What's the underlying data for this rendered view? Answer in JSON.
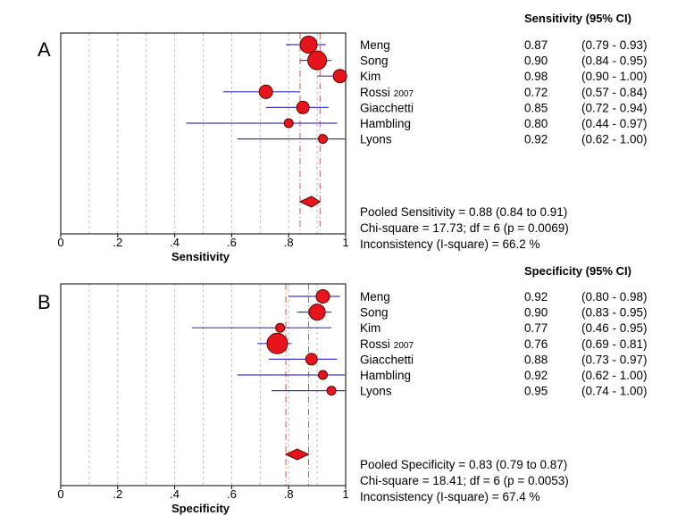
{
  "chart_data": [
    {
      "type": "forest",
      "panel_label": "A",
      "column_header": "Sensitivity (95% CI)",
      "xlabel": "Sensitivity",
      "xlim": [
        0,
        1
      ],
      "x_ticks": [
        "0",
        ".2",
        ".4",
        ".6",
        ".8",
        "1"
      ],
      "studies": [
        {
          "name": "Meng",
          "suffix": "",
          "estimate": 0.87,
          "ci_low": 0.79,
          "ci_high": 0.93,
          "estimate_text": "0.87",
          "ci_text": "(0.79 - 0.93)",
          "weight": 9.5
        },
        {
          "name": "Song",
          "suffix": "",
          "estimate": 0.9,
          "ci_low": 0.84,
          "ci_high": 0.95,
          "estimate_text": "0.90",
          "ci_text": "(0.84 - 0.95)",
          "weight": 10.5
        },
        {
          "name": "Kim",
          "suffix": "",
          "estimate": 0.98,
          "ci_low": 0.9,
          "ci_high": 1.0,
          "estimate_text": "0.98",
          "ci_text": "(0.90 - 1.00)",
          "weight": 7.5
        },
        {
          "name": "Rossi",
          "suffix": "2007",
          "estimate": 0.72,
          "ci_low": 0.57,
          "ci_high": 0.84,
          "estimate_text": "0.72",
          "ci_text": "(0.57 - 0.84)",
          "weight": 7.5
        },
        {
          "name": "Giacchetti",
          "suffix": "",
          "estimate": 0.85,
          "ci_low": 0.72,
          "ci_high": 0.94,
          "estimate_text": "0.85",
          "ci_text": "(0.72 - 0.94)",
          "weight": 7.0
        },
        {
          "name": "Hambling",
          "suffix": "",
          "estimate": 0.8,
          "ci_low": 0.44,
          "ci_high": 0.97,
          "estimate_text": "0.80",
          "ci_text": "(0.44 - 0.97)",
          "weight": 5.0
        },
        {
          "name": "Lyons",
          "suffix": "",
          "estimate": 0.92,
          "ci_low": 0.62,
          "ci_high": 1.0,
          "estimate_text": "0.92",
          "ci_text": "(0.62 - 1.00)",
          "weight": 5.0
        }
      ],
      "pooled": {
        "estimate": 0.88,
        "ci_low": 0.84,
        "ci_high": 0.91
      },
      "summary_lines": [
        "Pooled Sensitivity = 0.88 (0.84 to 0.91)",
        "Chi-square = 17.73; df =  6 (p = 0.0069)",
        "Inconsistency (I-square) = 66.2 %"
      ]
    },
    {
      "type": "forest",
      "panel_label": "B",
      "column_header": "Specificity (95% CI)",
      "xlabel": "Specificity",
      "xlim": [
        0,
        1
      ],
      "x_ticks": [
        "0",
        ".2",
        ".4",
        ".6",
        ".8",
        "1"
      ],
      "studies": [
        {
          "name": "Meng",
          "suffix": "",
          "estimate": 0.92,
          "ci_low": 0.8,
          "ci_high": 0.98,
          "estimate_text": "0.92",
          "ci_text": "(0.80 - 0.98)",
          "weight": 7.5
        },
        {
          "name": "Song",
          "suffix": "",
          "estimate": 0.9,
          "ci_low": 0.83,
          "ci_high": 0.95,
          "estimate_text": "0.90",
          "ci_text": "(0.83 - 0.95)",
          "weight": 9.0
        },
        {
          "name": "Kim",
          "suffix": "",
          "estimate": 0.77,
          "ci_low": 0.46,
          "ci_high": 0.95,
          "estimate_text": "0.77",
          "ci_text": "(0.46 - 0.95)",
          "weight": 5.0
        },
        {
          "name": "Rossi",
          "suffix": "2007",
          "estimate": 0.76,
          "ci_low": 0.69,
          "ci_high": 0.81,
          "estimate_text": "0.76",
          "ci_text": "(0.69 - 0.81)",
          "weight": 11.5
        },
        {
          "name": "Giacchetti",
          "suffix": "",
          "estimate": 0.88,
          "ci_low": 0.73,
          "ci_high": 0.97,
          "estimate_text": "0.88",
          "ci_text": "(0.73 - 0.97)",
          "weight": 6.5
        },
        {
          "name": "Hambling",
          "suffix": "",
          "estimate": 0.92,
          "ci_low": 0.62,
          "ci_high": 1.0,
          "estimate_text": "0.92",
          "ci_text": "(0.62 - 1.00)",
          "weight": 5.0
        },
        {
          "name": "Lyons",
          "suffix": "",
          "estimate": 0.95,
          "ci_low": 0.74,
          "ci_high": 1.0,
          "estimate_text": "0.95",
          "ci_text": "(0.74 - 1.00)",
          "weight": 5.0
        }
      ],
      "pooled": {
        "estimate": 0.83,
        "ci_low": 0.79,
        "ci_high": 0.87
      },
      "summary_lines": [
        "Pooled Specificity = 0.83 (0.79 to 0.87)",
        "Chi-square = 18.41; df =  6 (p = 0.0053)",
        "Inconsistency (I-square) = 67.4 %"
      ]
    }
  ],
  "colors": {
    "marker_fill": "#e8141b",
    "marker_stroke": "#5a0000",
    "ci_line": "#3a3acc",
    "pooled_ci_line": "#d9534f",
    "grid": "#bdbdbd",
    "frame": "#000000"
  }
}
